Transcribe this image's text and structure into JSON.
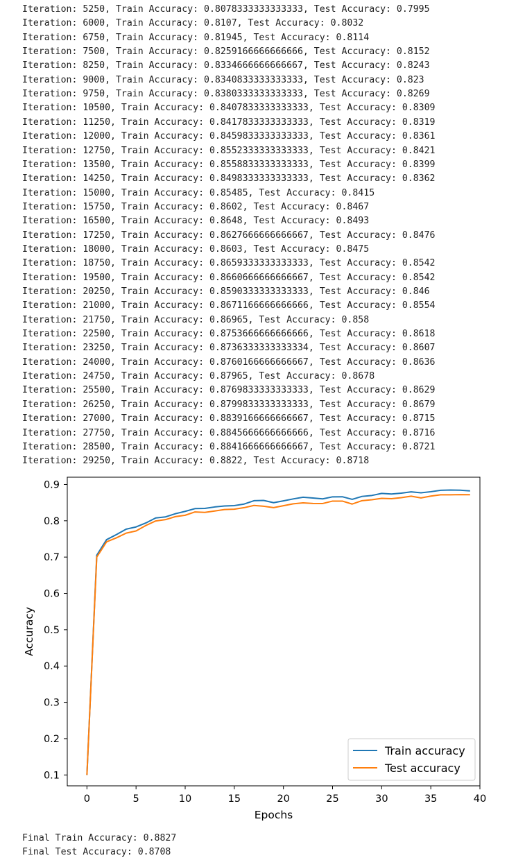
{
  "log": [
    "Iteration: 5250, Train Accuracy: 0.8078333333333333, Test Accuracy: 0.7995",
    "Iteration: 6000, Train Accuracy: 0.8107, Test Accuracy: 0.8032",
    "Iteration: 6750, Train Accuracy: 0.81945, Test Accuracy: 0.8114",
    "Iteration: 7500, Train Accuracy: 0.8259166666666666, Test Accuracy: 0.8152",
    "Iteration: 8250, Train Accuracy: 0.8334666666666667, Test Accuracy: 0.8243",
    "Iteration: 9000, Train Accuracy: 0.8340833333333333, Test Accuracy: 0.823",
    "Iteration: 9750, Train Accuracy: 0.8380333333333333, Test Accuracy: 0.8269",
    "Iteration: 10500, Train Accuracy: 0.8407833333333333, Test Accuracy: 0.8309",
    "Iteration: 11250, Train Accuracy: 0.8417833333333333, Test Accuracy: 0.8319",
    "Iteration: 12000, Train Accuracy: 0.8459833333333333, Test Accuracy: 0.8361",
    "Iteration: 12750, Train Accuracy: 0.8552333333333333, Test Accuracy: 0.8421",
    "Iteration: 13500, Train Accuracy: 0.8558833333333333, Test Accuracy: 0.8399",
    "Iteration: 14250, Train Accuracy: 0.8498333333333333, Test Accuracy: 0.8362",
    "Iteration: 15000, Train Accuracy: 0.85485, Test Accuracy: 0.8415",
    "Iteration: 15750, Train Accuracy: 0.8602, Test Accuracy: 0.8467",
    "Iteration: 16500, Train Accuracy: 0.8648, Test Accuracy: 0.8493",
    "Iteration: 17250, Train Accuracy: 0.8627666666666667, Test Accuracy: 0.8476",
    "Iteration: 18000, Train Accuracy: 0.8603, Test Accuracy: 0.8475",
    "Iteration: 18750, Train Accuracy: 0.8659333333333333, Test Accuracy: 0.8542",
    "Iteration: 19500, Train Accuracy: 0.8660666666666667, Test Accuracy: 0.8542",
    "Iteration: 20250, Train Accuracy: 0.8590333333333333, Test Accuracy: 0.846",
    "Iteration: 21000, Train Accuracy: 0.8671166666666666, Test Accuracy: 0.8554",
    "Iteration: 21750, Train Accuracy: 0.86965, Test Accuracy: 0.858",
    "Iteration: 22500, Train Accuracy: 0.8753666666666666, Test Accuracy: 0.8618",
    "Iteration: 23250, Train Accuracy: 0.8736333333333334, Test Accuracy: 0.8607",
    "Iteration: 24000, Train Accuracy: 0.8760166666666667, Test Accuracy: 0.8636",
    "Iteration: 24750, Train Accuracy: 0.87965, Test Accuracy: 0.8678",
    "Iteration: 25500, Train Accuracy: 0.8769833333333333, Test Accuracy: 0.8629",
    "Iteration: 26250, Train Accuracy: 0.8799833333333333, Test Accuracy: 0.8679",
    "Iteration: 27000, Train Accuracy: 0.8839166666666667, Test Accuracy: 0.8715",
    "Iteration: 27750, Train Accuracy: 0.8845666666666666, Test Accuracy: 0.8716",
    "Iteration: 28500, Train Accuracy: 0.8841666666666667, Test Accuracy: 0.8721",
    "Iteration: 29250, Train Accuracy: 0.8822, Test Accuracy: 0.8718"
  ],
  "final": {
    "train": "Final Train Accuracy: 0.8827",
    "test": "Final Test Accuracy: 0.8708"
  },
  "chart_data": {
    "type": "line",
    "title": "",
    "xlabel": "Epochs",
    "ylabel": "Accuracy",
    "xlim": [
      -2,
      40
    ],
    "ylim": [
      0.07,
      0.92
    ],
    "xticks": [
      0,
      5,
      10,
      15,
      20,
      25,
      30,
      35,
      40
    ],
    "yticks": [
      0.1,
      0.2,
      0.3,
      0.4,
      0.5,
      0.6,
      0.7,
      0.8,
      0.9
    ],
    "grid": false,
    "legend": "lower-right",
    "x": [
      0,
      1,
      2,
      3,
      4,
      5,
      6,
      7,
      8,
      9,
      10,
      11,
      12,
      13,
      14,
      15,
      16,
      17,
      18,
      19,
      20,
      21,
      22,
      23,
      24,
      25,
      26,
      27,
      28,
      29,
      30,
      31,
      32,
      33,
      34,
      35,
      36,
      37,
      38,
      39
    ],
    "series": [
      {
        "name": "Train accuracy",
        "color": "#1f77b4",
        "values": [
          0.1,
          0.705,
          0.748,
          0.762,
          0.777,
          0.783,
          0.794,
          0.8078,
          0.8107,
          0.81945,
          0.8259,
          0.8335,
          0.8341,
          0.838,
          0.8408,
          0.8418,
          0.846,
          0.8552,
          0.8559,
          0.8498,
          0.8549,
          0.8602,
          0.8648,
          0.8628,
          0.8603,
          0.8659,
          0.8661,
          0.859,
          0.8671,
          0.8697,
          0.8754,
          0.8736,
          0.876,
          0.8797,
          0.877,
          0.88,
          0.8839,
          0.8846,
          0.8842,
          0.8822
        ]
      },
      {
        "name": "Test accuracy",
        "color": "#ff7f0e",
        "values": [
          0.1,
          0.7,
          0.742,
          0.753,
          0.766,
          0.772,
          0.787,
          0.7995,
          0.8032,
          0.8114,
          0.8152,
          0.8243,
          0.823,
          0.8269,
          0.8309,
          0.8319,
          0.8361,
          0.8421,
          0.8399,
          0.8362,
          0.8415,
          0.8467,
          0.8493,
          0.8476,
          0.8475,
          0.8542,
          0.8542,
          0.846,
          0.8554,
          0.858,
          0.8618,
          0.8607,
          0.8636,
          0.8678,
          0.8629,
          0.8679,
          0.8715,
          0.8716,
          0.8721,
          0.8718
        ]
      }
    ]
  }
}
